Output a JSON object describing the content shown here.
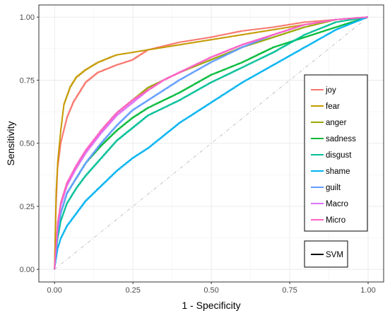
{
  "chart_data": {
    "type": "line",
    "xlabel": "1 - Specificity",
    "ylabel": "Sensitivity",
    "xlim": [
      0,
      1
    ],
    "ylim": [
      0,
      1
    ],
    "xticks": [
      "0.00",
      "0.25",
      "0.50",
      "0.75",
      "1.00"
    ],
    "yticks": [
      "0.00",
      "0.25",
      "0.50",
      "0.75",
      "1.00"
    ],
    "grid": true,
    "legend_position": "right",
    "reference_line": {
      "x": [
        0,
        1
      ],
      "y": [
        0,
        1
      ],
      "style": "dashed"
    },
    "series": [
      {
        "name": "joy",
        "color": "#F8766D",
        "x": [
          0,
          0.005,
          0.01,
          0.02,
          0.04,
          0.06,
          0.08,
          0.1,
          0.14,
          0.2,
          0.25,
          0.3,
          0.4,
          0.5,
          0.6,
          0.7,
          0.8,
          0.9,
          1.0
        ],
        "y": [
          0,
          0.25,
          0.4,
          0.5,
          0.6,
          0.66,
          0.7,
          0.74,
          0.78,
          0.81,
          0.83,
          0.87,
          0.9,
          0.92,
          0.945,
          0.96,
          0.98,
          0.99,
          1.0
        ]
      },
      {
        "name": "fear",
        "color": "#C49A00",
        "x": [
          0,
          0.005,
          0.01,
          0.02,
          0.03,
          0.05,
          0.07,
          0.1,
          0.14,
          0.2,
          0.25,
          0.3,
          0.4,
          0.5,
          0.6,
          0.7,
          0.8,
          0.9,
          1.0
        ],
        "y": [
          0,
          0.3,
          0.42,
          0.55,
          0.65,
          0.72,
          0.76,
          0.79,
          0.82,
          0.85,
          0.86,
          0.87,
          0.89,
          0.91,
          0.93,
          0.95,
          0.97,
          0.99,
          1.0
        ]
      },
      {
        "name": "anger",
        "color": "#99A800",
        "x": [
          0,
          0.01,
          0.02,
          0.04,
          0.07,
          0.1,
          0.15,
          0.2,
          0.25,
          0.3,
          0.35,
          0.4,
          0.5,
          0.6,
          0.7,
          0.8,
          0.9,
          1.0
        ],
        "y": [
          0,
          0.18,
          0.26,
          0.34,
          0.4,
          0.46,
          0.55,
          0.62,
          0.67,
          0.72,
          0.75,
          0.78,
          0.83,
          0.88,
          0.92,
          0.96,
          0.99,
          1.0
        ]
      },
      {
        "name": "sadness",
        "color": "#00BA38",
        "x": [
          0,
          0.01,
          0.02,
          0.04,
          0.07,
          0.1,
          0.15,
          0.2,
          0.25,
          0.3,
          0.35,
          0.4,
          0.5,
          0.6,
          0.7,
          0.8,
          0.9,
          0.95,
          1.0
        ],
        "y": [
          0,
          0.15,
          0.22,
          0.3,
          0.36,
          0.42,
          0.49,
          0.55,
          0.6,
          0.64,
          0.67,
          0.7,
          0.77,
          0.82,
          0.88,
          0.92,
          0.96,
          0.98,
          1.0
        ]
      },
      {
        "name": "disgust",
        "color": "#00BF96",
        "x": [
          0,
          0.01,
          0.02,
          0.04,
          0.07,
          0.1,
          0.15,
          0.2,
          0.25,
          0.3,
          0.35,
          0.4,
          0.5,
          0.6,
          0.7,
          0.8,
          0.9,
          1.0
        ],
        "y": [
          0,
          0.12,
          0.19,
          0.26,
          0.32,
          0.37,
          0.44,
          0.51,
          0.56,
          0.61,
          0.64,
          0.67,
          0.74,
          0.8,
          0.86,
          0.93,
          0.98,
          1.0
        ]
      },
      {
        "name": "shame",
        "color": "#00B3F0",
        "x": [
          0,
          0.01,
          0.02,
          0.04,
          0.07,
          0.1,
          0.15,
          0.2,
          0.25,
          0.3,
          0.35,
          0.4,
          0.45,
          0.5,
          0.55,
          0.6,
          0.7,
          0.8,
          0.9,
          1.0
        ],
        "y": [
          0,
          0.08,
          0.12,
          0.17,
          0.22,
          0.27,
          0.33,
          0.39,
          0.44,
          0.48,
          0.53,
          0.58,
          0.62,
          0.66,
          0.7,
          0.74,
          0.81,
          0.88,
          0.95,
          1.0
        ]
      },
      {
        "name": "guilt",
        "color": "#619CFF",
        "x": [
          0,
          0.01,
          0.02,
          0.04,
          0.07,
          0.1,
          0.15,
          0.2,
          0.25,
          0.3,
          0.35,
          0.4,
          0.5,
          0.6,
          0.7,
          0.8,
          0.9,
          1.0
        ],
        "y": [
          0,
          0.14,
          0.22,
          0.3,
          0.36,
          0.42,
          0.5,
          0.57,
          0.63,
          0.67,
          0.71,
          0.75,
          0.82,
          0.88,
          0.93,
          0.97,
          0.99,
          1.0
        ]
      },
      {
        "name": "Macro",
        "color": "#DB72FB",
        "x": [
          0,
          0.01,
          0.02,
          0.04,
          0.07,
          0.1,
          0.15,
          0.2,
          0.25,
          0.3,
          0.35,
          0.4,
          0.5,
          0.6,
          0.7,
          0.8,
          0.9,
          1.0
        ],
        "y": [
          0,
          0.17,
          0.25,
          0.33,
          0.4,
          0.46,
          0.54,
          0.61,
          0.66,
          0.71,
          0.75,
          0.78,
          0.84,
          0.89,
          0.93,
          0.97,
          0.99,
          1.0
        ]
      },
      {
        "name": "Micro",
        "color": "#FF61C3",
        "x": [
          0,
          0.01,
          0.02,
          0.04,
          0.07,
          0.1,
          0.15,
          0.2,
          0.25,
          0.3,
          0.35,
          0.4,
          0.5,
          0.6,
          0.7,
          0.8,
          0.9,
          1.0
        ],
        "y": [
          0,
          0.18,
          0.26,
          0.34,
          0.41,
          0.47,
          0.55,
          0.62,
          0.67,
          0.71,
          0.75,
          0.78,
          0.84,
          0.89,
          0.93,
          0.97,
          0.99,
          1.0
        ]
      }
    ],
    "linetype_legend": {
      "label": "SVM",
      "color": "#000000"
    }
  }
}
